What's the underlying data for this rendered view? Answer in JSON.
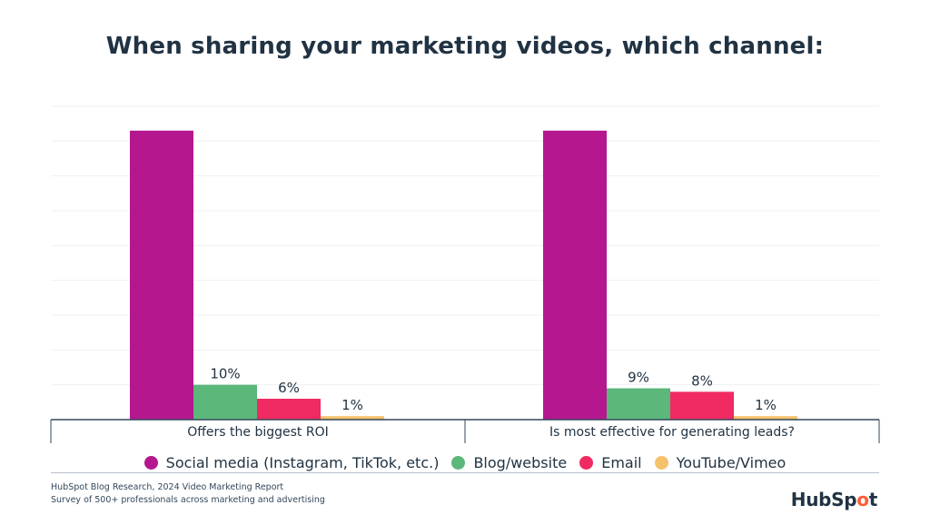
{
  "title": "When sharing your marketing videos, which channel:",
  "chart_data": {
    "type": "bar",
    "categories": [
      "Offers the biggest ROI",
      "Is most effective for generating leads?"
    ],
    "series": [
      {
        "name": "Social media (Instagram, TikTok, etc.)",
        "color": "#b5178f",
        "values": [
          83,
          83
        ],
        "labels": [
          "",
          ""
        ]
      },
      {
        "name": "Blog/website",
        "color": "#5bb77a",
        "values": [
          10,
          9
        ],
        "labels": [
          "10%",
          "9%"
        ]
      },
      {
        "name": "Email",
        "color": "#f02a63",
        "values": [
          6,
          8
        ],
        "labels": [
          "6%",
          "8%"
        ]
      },
      {
        "name": "YouTube/Vimeo",
        "color": "#f5c26b",
        "values": [
          1,
          1
        ],
        "labels": [
          "1%",
          "1%"
        ]
      }
    ],
    "ylim": [
      0,
      90
    ],
    "grid": true,
    "legend": "bottom"
  },
  "footer": {
    "source": "HubSpot Blog Research, 2024 Video Marketing Report",
    "survey": "Survey of 500+ professionals across marketing and advertising"
  },
  "logo": "HubSpot"
}
